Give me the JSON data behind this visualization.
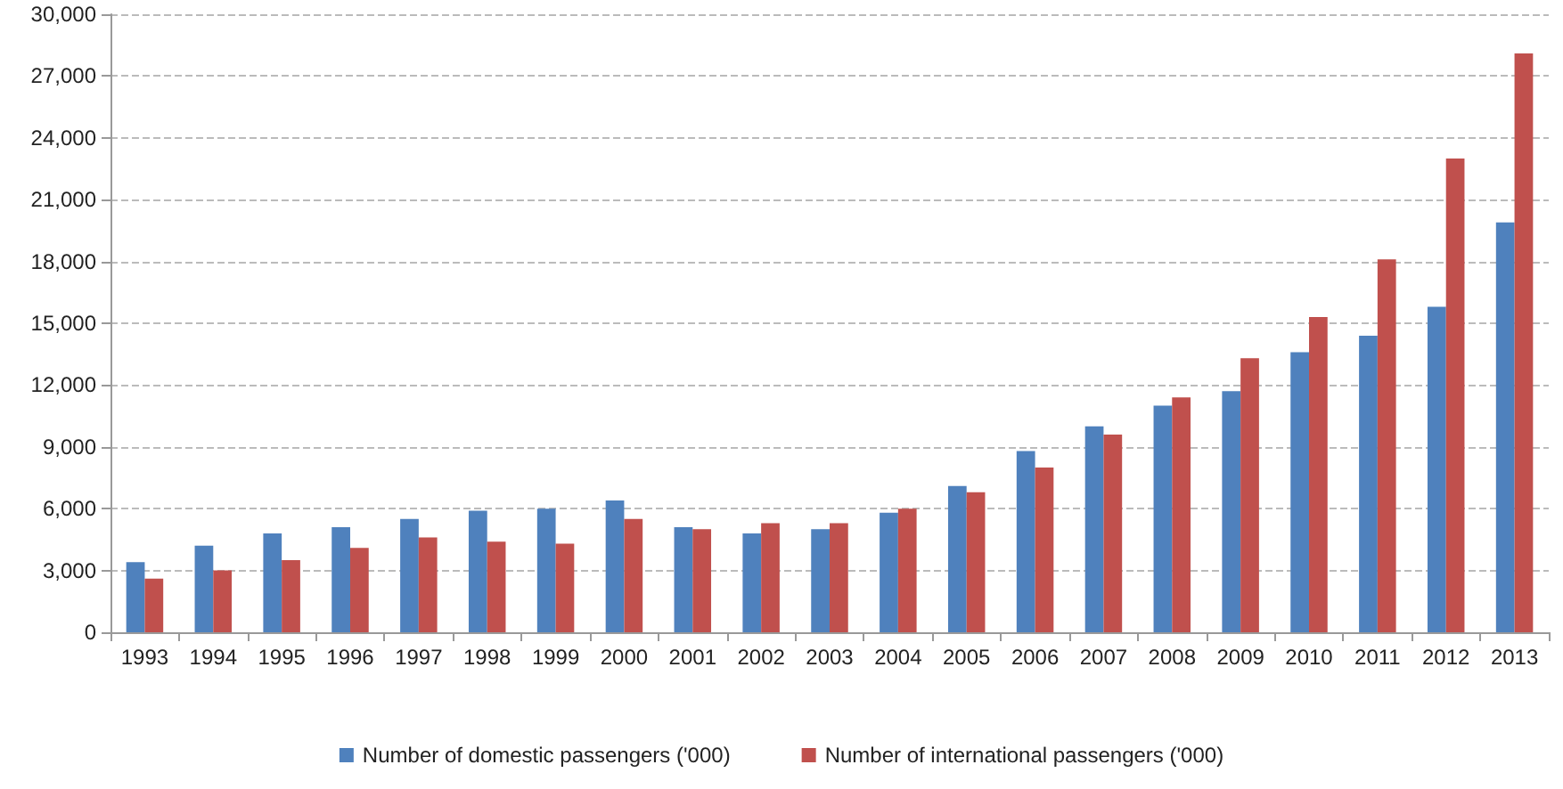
{
  "chart_data": {
    "type": "bar",
    "categories": [
      "1993",
      "1994",
      "1995",
      "1996",
      "1997",
      "1998",
      "1999",
      "2000",
      "2001",
      "2002",
      "2003",
      "2004",
      "2005",
      "2006",
      "2007",
      "2008",
      "2009",
      "2010",
      "2011",
      "2012",
      "2013"
    ],
    "series": [
      {
        "name": "Number of domestic passengers ('000)",
        "color": "#4f81bd",
        "values": [
          3400,
          4200,
          4800,
          5100,
          5500,
          5900,
          6000,
          6400,
          5100,
          4800,
          5000,
          5800,
          7100,
          8800,
          10000,
          11000,
          11700,
          13600,
          14400,
          15800,
          19900
        ]
      },
      {
        "name": "Number of international passengers ('000)",
        "color": "#c0504d",
        "values": [
          2600,
          3000,
          3500,
          4100,
          4600,
          4400,
          4300,
          5500,
          5000,
          5300,
          5300,
          6000,
          6800,
          8000,
          9600,
          11400,
          13300,
          15300,
          18100,
          23000,
          28100
        ]
      }
    ],
    "ylim": [
      0,
      30000
    ],
    "yticks": [
      0,
      {
        "value": 3000,
        "label": "3,000"
      },
      {
        "value": 6000,
        "label": "6,000"
      },
      {
        "value": 9000,
        "label": "9,000"
      },
      {
        "value": 12000,
        "label": "12,000"
      },
      {
        "value": 15000,
        "label": "15,000"
      },
      {
        "value": 18000,
        "label": "18,000"
      },
      {
        "value": 21000,
        "label": "21,000"
      },
      {
        "value": 24000,
        "label": "24,000"
      },
      {
        "value": 27000,
        "label": "27,000"
      },
      {
        "value": 30000,
        "label": "30,000"
      }
    ],
    "grid": "y",
    "legend": "bottom"
  }
}
